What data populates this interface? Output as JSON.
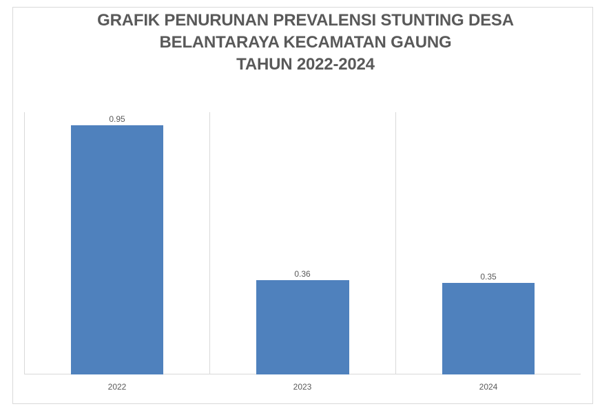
{
  "chart_data": {
    "type": "bar",
    "title": "GRAFIK PENURUNAN PREVALENSI STUNTING DESA BELANTARAYA KECAMATAN GAUNG TAHUN 2022-2024",
    "title_lines": [
      "GRAFIK PENURUNAN PREVALENSI STUNTING DESA",
      "BELANTARAYA KECAMATAN GAUNG",
      "TAHUN 2022-2024"
    ],
    "categories": [
      "2022",
      "2023",
      "2024"
    ],
    "values": [
      0.95,
      0.36,
      0.35
    ],
    "data_labels": [
      "0.95",
      "0.36",
      "0.35"
    ],
    "xlabel": "",
    "ylabel": "",
    "ylim": [
      0,
      1.0
    ],
    "y_axis_visible": false,
    "grid": "vertical category separators",
    "legend": "none",
    "bar_color": "#4f81bd"
  }
}
